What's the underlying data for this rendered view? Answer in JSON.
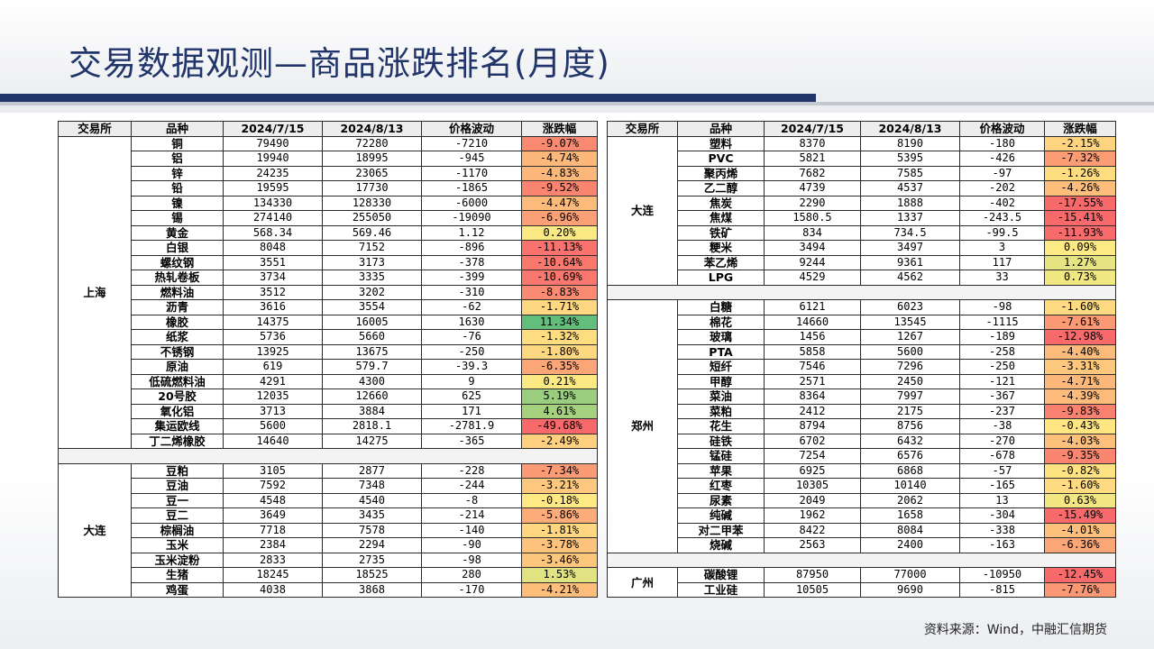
{
  "title": "交易数据观测—商品涨跌排名(月度)",
  "source": "资料来源：Wind，中融汇信期货",
  "colors": {
    "title": "#21356b",
    "negative": "#f8696b",
    "positive": "#63be7b",
    "neutral": "#ffeb84"
  },
  "headers": [
    "交易所",
    "品种",
    "2024/7/15",
    "2024/8/13",
    "价格波动",
    "涨跌幅"
  ],
  "left_table": [
    {
      "exchange": "上海",
      "rows": [
        [
          "铜",
          "79490",
          "72280",
          "-7210",
          "-9.07%"
        ],
        [
          "铝",
          "19940",
          "18995",
          "-945",
          "-4.74%"
        ],
        [
          "锌",
          "24235",
          "23065",
          "-1170",
          "-4.83%"
        ],
        [
          "铅",
          "19595",
          "17730",
          "-1865",
          "-9.52%"
        ],
        [
          "镍",
          "134330",
          "128330",
          "-6000",
          "-4.47%"
        ],
        [
          "锡",
          "274140",
          "255050",
          "-19090",
          "-6.96%"
        ],
        [
          "黄金",
          "568.34",
          "569.46",
          "1.12",
          "0.20%"
        ],
        [
          "白银",
          "8048",
          "7152",
          "-896",
          "-11.13%"
        ],
        [
          "螺纹钢",
          "3551",
          "3173",
          "-378",
          "-10.64%"
        ],
        [
          "热轧卷板",
          "3734",
          "3335",
          "-399",
          "-10.69%"
        ],
        [
          "燃料油",
          "3512",
          "3202",
          "-310",
          "-8.83%"
        ],
        [
          "沥青",
          "3616",
          "3554",
          "-62",
          "-1.71%"
        ],
        [
          "橡胶",
          "14375",
          "16005",
          "1630",
          "11.34%"
        ],
        [
          "纸浆",
          "5736",
          "5660",
          "-76",
          "-1.32%"
        ],
        [
          "不锈钢",
          "13925",
          "13675",
          "-250",
          "-1.80%"
        ],
        [
          "原油",
          "619",
          "579.7",
          "-39.3",
          "-6.35%"
        ],
        [
          "低硫燃料油",
          "4291",
          "4300",
          "9",
          "0.21%"
        ],
        [
          "20号胶",
          "12035",
          "12660",
          "625",
          "5.19%"
        ],
        [
          "氧化铝",
          "3713",
          "3884",
          "171",
          "4.61%"
        ],
        [
          "集运欧线",
          "5600",
          "2818.1",
          "-2781.9",
          "-49.68%"
        ],
        [
          "丁二烯橡胶",
          "14640",
          "14275",
          "-365",
          "-2.49%"
        ]
      ]
    },
    {
      "exchange": "大连",
      "rows": [
        [
          "豆粕",
          "3105",
          "2877",
          "-228",
          "-7.34%"
        ],
        [
          "豆油",
          "7592",
          "7348",
          "-244",
          "-3.21%"
        ],
        [
          "豆一",
          "4548",
          "4540",
          "-8",
          "-0.18%"
        ],
        [
          "豆二",
          "3649",
          "3435",
          "-214",
          "-5.86%"
        ],
        [
          "棕榈油",
          "7718",
          "7578",
          "-140",
          "-1.81%"
        ],
        [
          "玉米",
          "2384",
          "2294",
          "-90",
          "-3.78%"
        ],
        [
          "玉米淀粉",
          "2833",
          "2735",
          "-98",
          "-3.46%"
        ],
        [
          "生猪",
          "18245",
          "18525",
          "280",
          "1.53%"
        ],
        [
          "鸡蛋",
          "4038",
          "3868",
          "-170",
          "-4.21%"
        ]
      ]
    }
  ],
  "right_table": [
    {
      "exchange": "大连",
      "rows": [
        [
          "塑料",
          "8370",
          "8190",
          "-180",
          "-2.15%"
        ],
        [
          "PVC",
          "5821",
          "5395",
          "-426",
          "-7.32%"
        ],
        [
          "聚丙烯",
          "7682",
          "7585",
          "-97",
          "-1.26%"
        ],
        [
          "乙二醇",
          "4739",
          "4537",
          "-202",
          "-4.26%"
        ],
        [
          "焦炭",
          "2290",
          "1888",
          "-402",
          "-17.55%"
        ],
        [
          "焦煤",
          "1580.5",
          "1337",
          "-243.5",
          "-15.41%"
        ],
        [
          "铁矿",
          "834",
          "734.5",
          "-99.5",
          "-11.93%"
        ],
        [
          "粳米",
          "3494",
          "3497",
          "3",
          "0.09%"
        ],
        [
          "苯乙烯",
          "9244",
          "9361",
          "117",
          "1.27%"
        ],
        [
          "LPG",
          "4529",
          "4562",
          "33",
          "0.73%"
        ]
      ]
    },
    {
      "exchange": "郑州",
      "rows": [
        [
          "白糖",
          "6121",
          "6023",
          "-98",
          "-1.60%"
        ],
        [
          "棉花",
          "14660",
          "13545",
          "-1115",
          "-7.61%"
        ],
        [
          "玻璃",
          "1456",
          "1267",
          "-189",
          "-12.98%"
        ],
        [
          "PTA",
          "5858",
          "5600",
          "-258",
          "-4.40%"
        ],
        [
          "短纤",
          "7546",
          "7296",
          "-250",
          "-3.31%"
        ],
        [
          "甲醇",
          "2571",
          "2450",
          "-121",
          "-4.71%"
        ],
        [
          "菜油",
          "8364",
          "7997",
          "-367",
          "-4.39%"
        ],
        [
          "菜粕",
          "2412",
          "2175",
          "-237",
          "-9.83%"
        ],
        [
          "花生",
          "8794",
          "8756",
          "-38",
          "-0.43%"
        ],
        [
          "硅铁",
          "6702",
          "6432",
          "-270",
          "-4.03%"
        ],
        [
          "锰硅",
          "7254",
          "6576",
          "-678",
          "-9.35%"
        ],
        [
          "苹果",
          "6925",
          "6868",
          "-57",
          "-0.82%"
        ],
        [
          "红枣",
          "10305",
          "10140",
          "-165",
          "-1.60%"
        ],
        [
          "尿素",
          "2049",
          "2062",
          "13",
          "0.63%"
        ],
        [
          "纯碱",
          "1962",
          "1658",
          "-304",
          "-15.49%"
        ],
        [
          "对二甲苯",
          "8422",
          "8084",
          "-338",
          "-4.01%"
        ],
        [
          "烧碱",
          "2563",
          "2400",
          "-163",
          "-6.36%"
        ]
      ]
    },
    {
      "exchange": "广州",
      "rows": [
        [
          "碳酸锂",
          "87950",
          "77000",
          "-10950",
          "-12.45%"
        ],
        [
          "工业硅",
          "10505",
          "9690",
          "-815",
          "-7.76%"
        ]
      ]
    }
  ]
}
